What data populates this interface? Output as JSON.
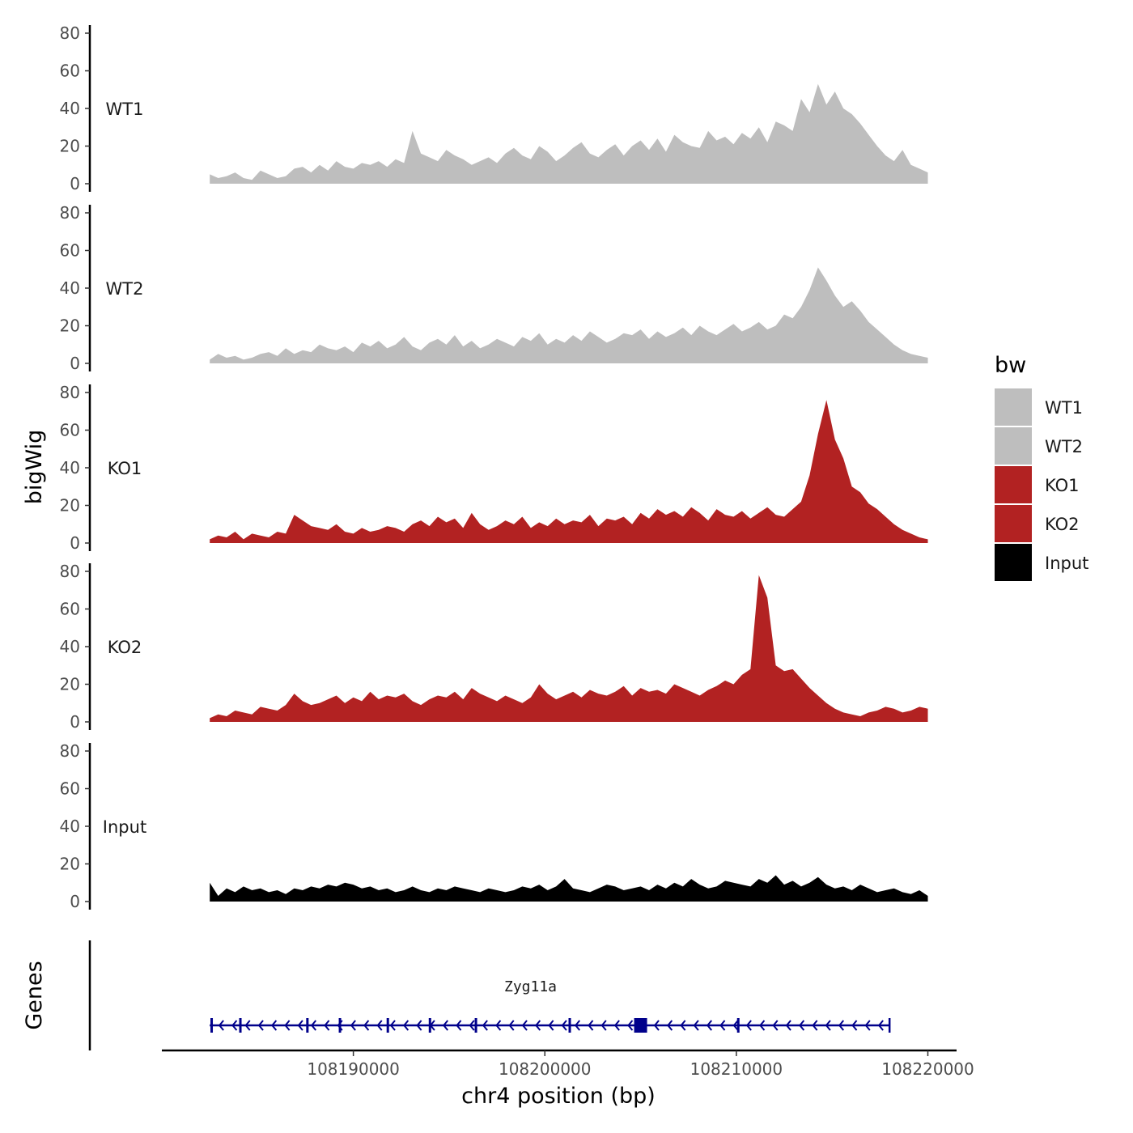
{
  "chart_data": {
    "type": "area",
    "ylabel": "bigWig",
    "xlabel": "chr4 position (bp)",
    "ylim": [
      0,
      80
    ],
    "yticks": [
      0,
      20,
      40,
      60,
      80
    ],
    "xlim": [
      108180000,
      108221500
    ],
    "xticks": [
      108190000,
      108200000,
      108210000,
      108220000
    ],
    "x_start": 108182500,
    "x_end": 108220000,
    "legend_title": "bw",
    "legend": [
      {
        "name": "WT1",
        "color": "#bebebe"
      },
      {
        "name": "WT2",
        "color": "#bebebe"
      },
      {
        "name": "KO1",
        "color": "#b22222"
      },
      {
        "name": "KO2",
        "color": "#b22222"
      },
      {
        "name": "Input",
        "color": "#000000"
      }
    ],
    "series": [
      {
        "name": "WT1",
        "color": "#bebebe",
        "values": [
          5,
          3,
          4,
          6,
          3,
          2,
          7,
          5,
          3,
          4,
          8,
          9,
          6,
          10,
          7,
          12,
          9,
          8,
          11,
          10,
          12,
          9,
          13,
          11,
          28,
          16,
          14,
          12,
          18,
          15,
          13,
          10,
          12,
          14,
          11,
          16,
          19,
          15,
          13,
          20,
          17,
          12,
          15,
          19,
          22,
          16,
          14,
          18,
          21,
          15,
          20,
          23,
          18,
          24,
          17,
          26,
          22,
          20,
          19,
          28,
          23,
          25,
          21,
          27,
          24,
          30,
          22,
          33,
          31,
          28,
          45,
          38,
          53,
          42,
          49,
          40,
          37,
          32,
          26,
          20,
          15,
          12,
          18,
          10,
          8,
          6
        ]
      },
      {
        "name": "WT2",
        "color": "#bebebe",
        "values": [
          2,
          5,
          3,
          4,
          2,
          3,
          5,
          6,
          4,
          8,
          5,
          7,
          6,
          10,
          8,
          7,
          9,
          6,
          11,
          9,
          12,
          8,
          10,
          14,
          9,
          7,
          11,
          13,
          10,
          15,
          9,
          12,
          8,
          10,
          13,
          11,
          9,
          14,
          12,
          16,
          10,
          13,
          11,
          15,
          12,
          17,
          14,
          11,
          13,
          16,
          15,
          18,
          13,
          17,
          14,
          16,
          19,
          15,
          20,
          17,
          15,
          18,
          21,
          17,
          19,
          22,
          18,
          20,
          26,
          24,
          30,
          39,
          51,
          44,
          36,
          30,
          33,
          28,
          22,
          18,
          14,
          10,
          7,
          5,
          4,
          3
        ]
      },
      {
        "name": "KO1",
        "color": "#b22222",
        "values": [
          2,
          4,
          3,
          6,
          2,
          5,
          4,
          3,
          6,
          5,
          15,
          12,
          9,
          8,
          7,
          10,
          6,
          5,
          8,
          6,
          7,
          9,
          8,
          6,
          10,
          12,
          9,
          14,
          11,
          13,
          8,
          16,
          10,
          7,
          9,
          12,
          10,
          14,
          8,
          11,
          9,
          13,
          10,
          12,
          11,
          15,
          9,
          13,
          12,
          14,
          10,
          16,
          13,
          18,
          15,
          17,
          14,
          19,
          16,
          12,
          18,
          15,
          14,
          17,
          13,
          16,
          19,
          15,
          14,
          18,
          22,
          36,
          58,
          76,
          55,
          45,
          30,
          27,
          21,
          18,
          14,
          10,
          7,
          5,
          3,
          2
        ]
      },
      {
        "name": "KO2",
        "color": "#b22222",
        "values": [
          2,
          4,
          3,
          6,
          5,
          4,
          8,
          7,
          6,
          9,
          15,
          11,
          9,
          10,
          12,
          14,
          10,
          13,
          11,
          16,
          12,
          14,
          13,
          15,
          11,
          9,
          12,
          14,
          13,
          16,
          12,
          18,
          15,
          13,
          11,
          14,
          12,
          10,
          13,
          20,
          15,
          12,
          14,
          16,
          13,
          17,
          15,
          14,
          16,
          19,
          14,
          18,
          16,
          17,
          15,
          20,
          18,
          16,
          14,
          17,
          19,
          22,
          20,
          25,
          28,
          78,
          66,
          30,
          27,
          28,
          23,
          18,
          14,
          10,
          7,
          5,
          4,
          3,
          5,
          6,
          8,
          7,
          5,
          6,
          8,
          7
        ]
      },
      {
        "name": "Input",
        "color": "#000000",
        "values": [
          10,
          3,
          7,
          5,
          8,
          6,
          7,
          5,
          6,
          4,
          7,
          6,
          8,
          7,
          9,
          8,
          10,
          9,
          7,
          8,
          6,
          7,
          5,
          6,
          8,
          6,
          5,
          7,
          6,
          8,
          7,
          6,
          5,
          7,
          6,
          5,
          6,
          8,
          7,
          9,
          6,
          8,
          12,
          7,
          6,
          5,
          7,
          9,
          8,
          6,
          7,
          8,
          6,
          9,
          7,
          10,
          8,
          12,
          9,
          7,
          8,
          11,
          10,
          9,
          8,
          12,
          10,
          14,
          9,
          11,
          8,
          10,
          13,
          9,
          7,
          8,
          6,
          9,
          7,
          5,
          6,
          7,
          5,
          4,
          6,
          3
        ]
      }
    ],
    "genes": {
      "title": "Genes",
      "name": "Zyg11a",
      "strand": "-",
      "start": 108182500,
      "end": 108218000,
      "exons": [
        108182600,
        108184100,
        108187600,
        108189300,
        108191800,
        108194000,
        108196400,
        108201300,
        108210100
      ],
      "cds_box": 108205000
    }
  }
}
